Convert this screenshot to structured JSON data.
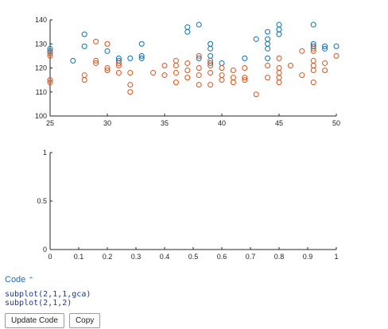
{
  "chart_data": [
    {
      "type": "scatter",
      "title": "",
      "xlabel": "",
      "ylabel": "",
      "xlim": [
        25,
        50
      ],
      "ylim": [
        100,
        140
      ],
      "xticks": [
        25,
        30,
        35,
        40,
        45,
        50
      ],
      "yticks": [
        100,
        110,
        120,
        130,
        140
      ],
      "grid": false,
      "series": [
        {
          "color": "#0072BD",
          "marker": "circle",
          "points": [
            [
              25,
              128
            ],
            [
              25,
              127
            ],
            [
              27,
              123
            ],
            [
              28,
              134
            ],
            [
              28,
              129
            ],
            [
              30,
              127
            ],
            [
              31,
              124
            ],
            [
              31,
              123
            ],
            [
              32,
              124
            ],
            [
              33,
              130
            ],
            [
              33,
              125
            ],
            [
              33,
              124
            ],
            [
              37,
              137
            ],
            [
              37,
              135
            ],
            [
              38,
              138
            ],
            [
              38,
              124
            ],
            [
              39,
              130
            ],
            [
              39,
              128
            ],
            [
              39,
              125
            ],
            [
              39,
              122
            ],
            [
              40,
              122
            ],
            [
              42,
              124
            ],
            [
              43,
              132
            ],
            [
              44,
              135
            ],
            [
              44,
              132
            ],
            [
              44,
              130
            ],
            [
              44,
              128
            ],
            [
              44,
              124
            ],
            [
              45,
              138
            ],
            [
              45,
              136
            ],
            [
              45,
              134
            ],
            [
              48,
              138
            ],
            [
              48,
              130
            ],
            [
              48,
              129
            ],
            [
              49,
              129
            ],
            [
              49,
              128
            ],
            [
              50,
              129
            ]
          ]
        },
        {
          "color": "#D95319",
          "marker": "circle",
          "points": [
            [
              25,
              126
            ],
            [
              25,
              125
            ],
            [
              25,
              115
            ],
            [
              25,
              114
            ],
            [
              28,
              117
            ],
            [
              28,
              115
            ],
            [
              29,
              131
            ],
            [
              29,
              123
            ],
            [
              29,
              122
            ],
            [
              30,
              130
            ],
            [
              30,
              120
            ],
            [
              30,
              119
            ],
            [
              31,
              122
            ],
            [
              31,
              121
            ],
            [
              31,
              118
            ],
            [
              32,
              118
            ],
            [
              32,
              113
            ],
            [
              32,
              110
            ],
            [
              34,
              118
            ],
            [
              35,
              121
            ],
            [
              35,
              117
            ],
            [
              36,
              123
            ],
            [
              36,
              121
            ],
            [
              36,
              118
            ],
            [
              36,
              114
            ],
            [
              37,
              122
            ],
            [
              37,
              119
            ],
            [
              37,
              116
            ],
            [
              38,
              125
            ],
            [
              38,
              120
            ],
            [
              38,
              117
            ],
            [
              38,
              113
            ],
            [
              39,
              123
            ],
            [
              39,
              121
            ],
            [
              39,
              118
            ],
            [
              39,
              113
            ],
            [
              40,
              120
            ],
            [
              40,
              117
            ],
            [
              40,
              115
            ],
            [
              41,
              119
            ],
            [
              41,
              116
            ],
            [
              41,
              114
            ],
            [
              42,
              120
            ],
            [
              42,
              116
            ],
            [
              42,
              115
            ],
            [
              43,
              109
            ],
            [
              44,
              121
            ],
            [
              44,
              116
            ],
            [
              45,
              124
            ],
            [
              45,
              120
            ],
            [
              45,
              118
            ],
            [
              45,
              116
            ],
            [
              45,
              114
            ],
            [
              46,
              121
            ],
            [
              47,
              127
            ],
            [
              47,
              117
            ],
            [
              48,
              128
            ],
            [
              48,
              127
            ],
            [
              48,
              123
            ],
            [
              48,
              121
            ],
            [
              48,
              119
            ],
            [
              48,
              114
            ],
            [
              49,
              122
            ],
            [
              49,
              119
            ],
            [
              50,
              125
            ]
          ]
        }
      ]
    },
    {
      "type": "scatter",
      "title": "",
      "xlabel": "",
      "ylabel": "",
      "xlim": [
        0,
        1
      ],
      "ylim": [
        0,
        1
      ],
      "xticks": [
        0,
        0.1,
        0.2,
        0.3,
        0.4,
        0.5,
        0.6,
        0.7,
        0.8,
        0.9,
        1
      ],
      "yticks": [
        0,
        0.5,
        1
      ],
      "grid": false,
      "series": []
    }
  ],
  "code": {
    "toggle_label": "Code",
    "toggle_icon": "chevron-up-icon",
    "lines": [
      "subplot(2,1,1,gca)",
      "subplot(2,1,2)"
    ],
    "update_button": "Update Code",
    "copy_button": "Copy",
    "link_color": "#1a6bc5"
  }
}
